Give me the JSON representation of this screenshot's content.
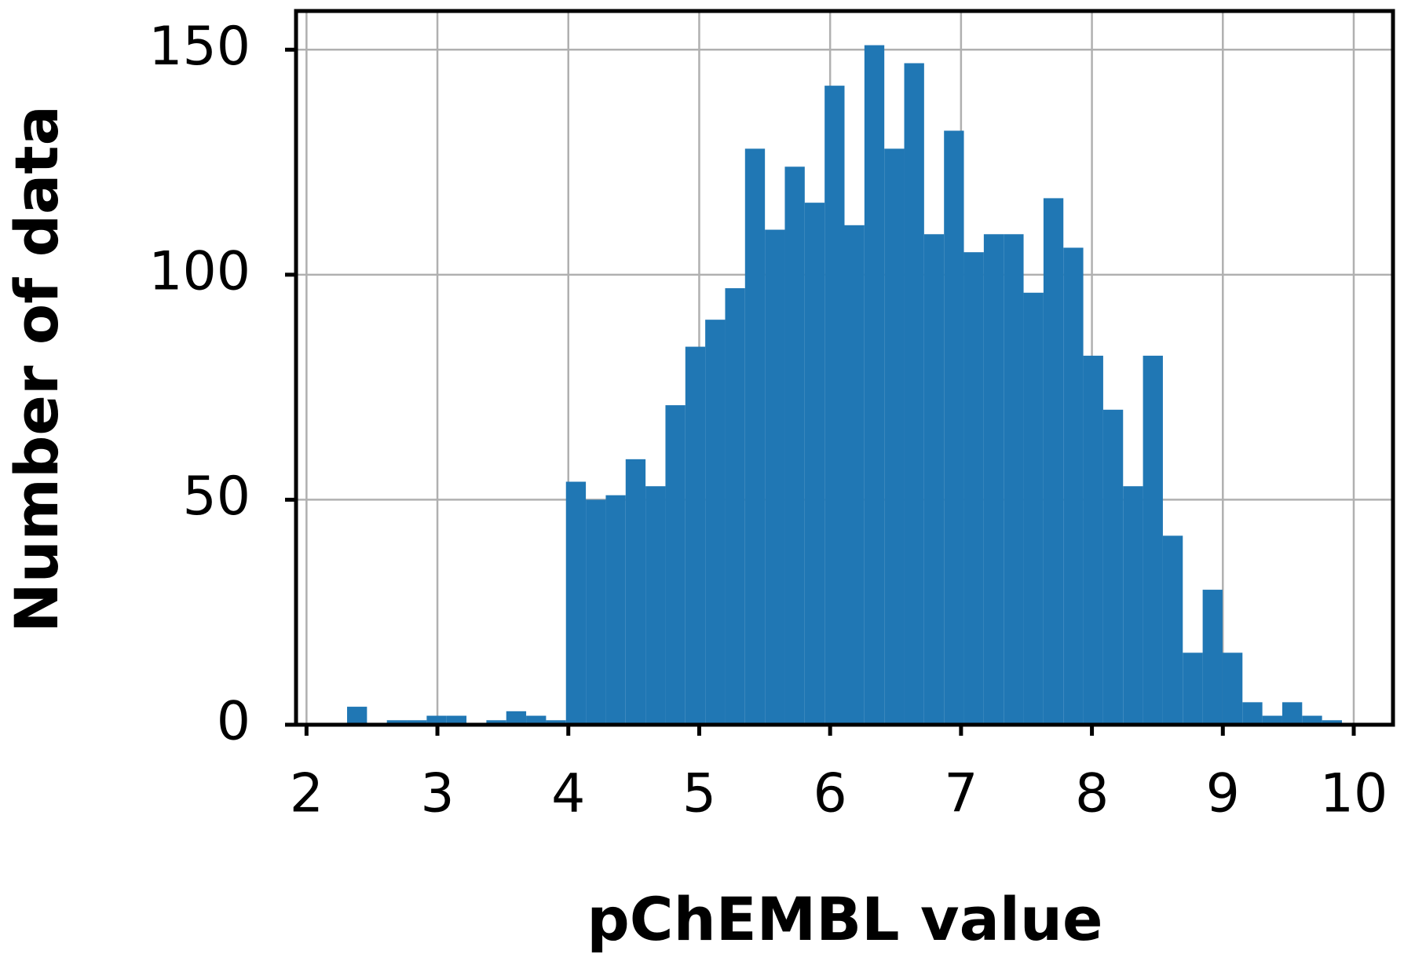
{
  "chart_data": {
    "type": "histogram",
    "xlabel": "pChEMBL value",
    "ylabel": "Number of data",
    "bins": [
      2.31,
      2.462,
      2.614,
      2.766,
      2.918,
      3.07,
      3.222,
      3.374,
      3.526,
      3.678,
      3.83,
      3.982,
      4.134,
      4.286,
      4.438,
      4.59,
      4.742,
      4.894,
      5.046,
      5.198,
      5.35,
      5.502,
      5.654,
      5.806,
      5.958,
      6.11,
      6.262,
      6.414,
      6.566,
      6.718,
      6.87,
      7.022,
      7.174,
      7.326,
      7.478,
      7.63,
      7.782,
      7.934,
      8.086,
      8.238,
      8.39,
      8.542,
      8.694,
      8.846,
      8.998,
      9.15,
      9.302,
      9.454,
      9.606,
      9.758,
      9.91
    ],
    "values": [
      4,
      0,
      1,
      1,
      2,
      2,
      0,
      1,
      3,
      2,
      1,
      54,
      50,
      51,
      59,
      53,
      71,
      84,
      90,
      97,
      128,
      110,
      124,
      116,
      142,
      111,
      151,
      128,
      147,
      109,
      132,
      105,
      109,
      109,
      96,
      117,
      106,
      82,
      70,
      53,
      82,
      42,
      16,
      30,
      16,
      5,
      2,
      5,
      2,
      1
    ],
    "color": "#2077b4",
    "xlim": [
      1.92,
      10.3
    ],
    "ylim": [
      0,
      158.6
    ],
    "xticks": [
      2,
      3,
      4,
      5,
      6,
      7,
      8,
      9,
      10
    ],
    "yticks": [
      0,
      50,
      100,
      150
    ],
    "grid": true
  }
}
